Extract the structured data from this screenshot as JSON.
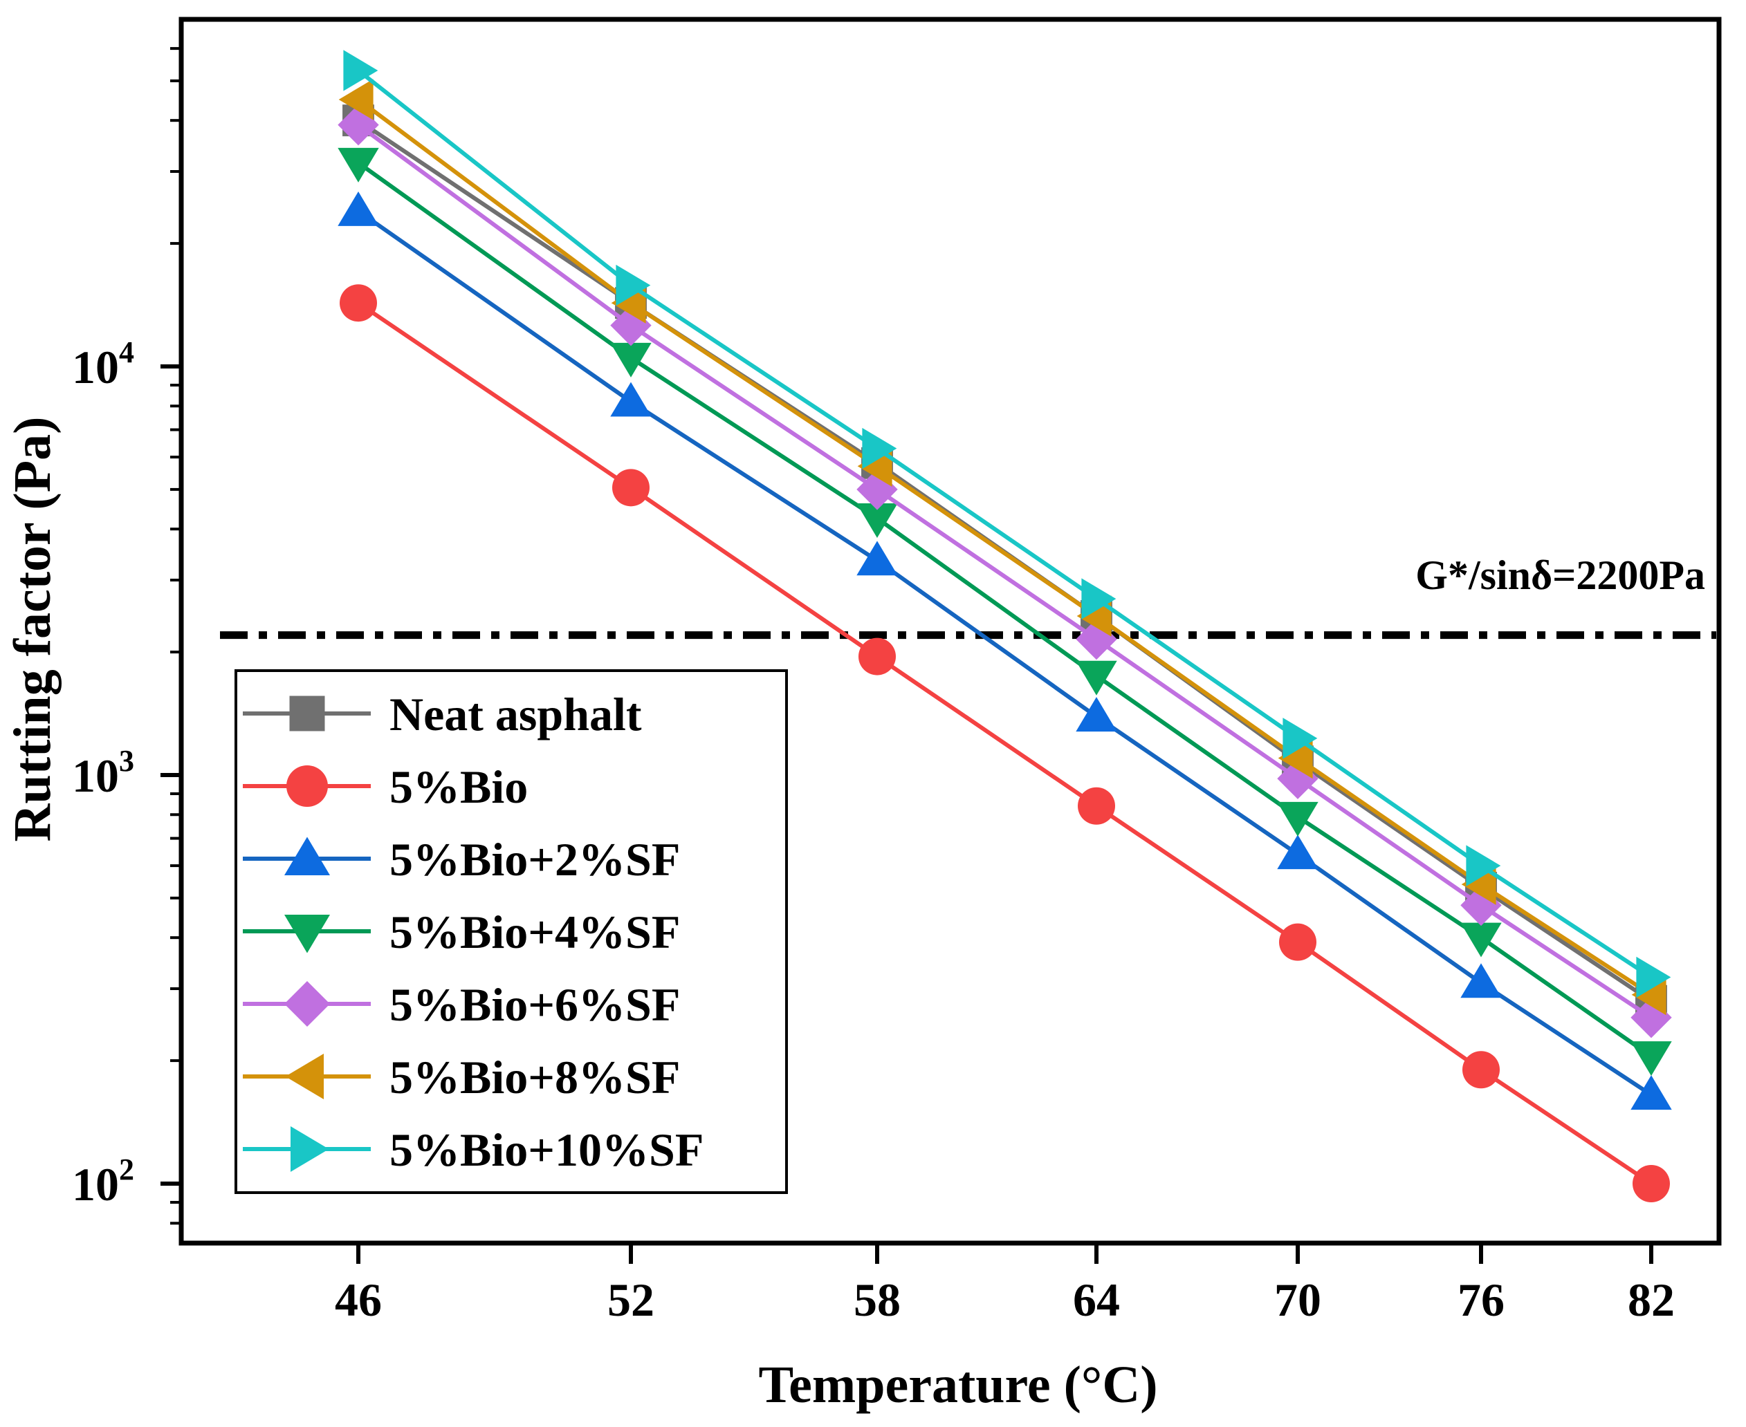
{
  "chart_data": {
    "type": "line",
    "xlabel": "Temperature (°C)",
    "ylabel": "Rutting factor (Pa)",
    "x": [
      46,
      52,
      58,
      64,
      70,
      76,
      82
    ],
    "x_tick_labels": [
      "46",
      "52",
      "58",
      "64",
      "70",
      "76",
      "82"
    ],
    "x_scale": "categorical-linear",
    "y_scale": "log",
    "ylim": [
      70,
      90000
    ],
    "y_ticks": [
      {
        "value": 100,
        "base": "10",
        "exp": "2"
      },
      {
        "value": 1000,
        "base": "10",
        "exp": "3"
      },
      {
        "value": 10000,
        "base": "10",
        "exp": "4"
      }
    ],
    "reference_line": {
      "value": 2200,
      "label": "G*/sinδ=2200Pa",
      "style": "dash-dot",
      "color": "#000000"
    },
    "legend_position": "lower-left",
    "series": [
      {
        "name": "Neat asphalt",
        "marker": "square",
        "color": "#707070",
        "marker_color": "#707070",
        "values": [
          40000,
          14300,
          5800,
          2450,
          1080,
          530,
          280
        ]
      },
      {
        "name": "5%Bio",
        "marker": "circle",
        "color": "#f44242",
        "marker_color": "#f44242",
        "values": [
          14300,
          5050,
          1950,
          840,
          390,
          190,
          100
        ]
      },
      {
        "name": "5%Bio+2%SF",
        "marker": "triangle-up",
        "color": "#1565c0",
        "marker_color": "#0d6be0",
        "values": [
          24000,
          8200,
          3350,
          1390,
          640,
          310,
          165
        ]
      },
      {
        "name": "5%Bio+4%SF",
        "marker": "triangle-down",
        "color": "#009955",
        "marker_color": "#0aa55a",
        "values": [
          31500,
          10500,
          4250,
          1750,
          790,
          400,
          205
        ]
      },
      {
        "name": "5%Bio+6%SF",
        "marker": "diamond",
        "color": "#c070e0",
        "marker_color": "#c070e0",
        "values": [
          39000,
          12600,
          5000,
          2150,
          980,
          480,
          255
        ]
      },
      {
        "name": "5%Bio+8%SF",
        "marker": "triangle-left",
        "color": "#d4920a",
        "marker_color": "#d4920a",
        "values": [
          45000,
          14300,
          5700,
          2450,
          1100,
          540,
          290
        ]
      },
      {
        "name": "5%Bio+10%SF",
        "marker": "triangle-right",
        "color": "#19c6c6",
        "marker_color": "#19c6c6",
        "values": [
          53000,
          15800,
          6300,
          2700,
          1230,
          600,
          320
        ]
      }
    ]
  }
}
